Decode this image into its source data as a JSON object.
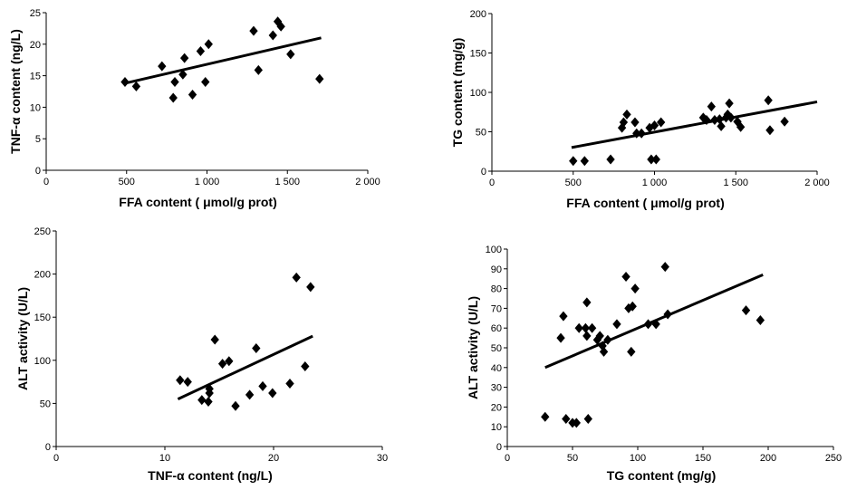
{
  "chart_data": [
    {
      "type": "scatter",
      "xlabel": "FFA content ( μmol/g prot)",
      "ylabel": "TNF-α content (ng/L)",
      "xlim": [
        0,
        2000
      ],
      "ylim": [
        0,
        25
      ],
      "xticks": [
        0,
        500,
        1000,
        1500,
        2000
      ],
      "xtick_labels": [
        "0",
        "500",
        "1 000",
        "1 500",
        "2 000"
      ],
      "yticks": [
        0,
        5,
        10,
        15,
        20,
        25
      ],
      "ytick_labels": [
        "0",
        "5",
        "10",
        "15",
        "20",
        "25"
      ],
      "points": [
        [
          490,
          14.0
        ],
        [
          560,
          13.3
        ],
        [
          720,
          16.5
        ],
        [
          790,
          11.5
        ],
        [
          800,
          14.0
        ],
        [
          850,
          15.2
        ],
        [
          860,
          17.8
        ],
        [
          910,
          12.0
        ],
        [
          960,
          18.9
        ],
        [
          990,
          14.0
        ],
        [
          1010,
          20.0
        ],
        [
          1290,
          22.1
        ],
        [
          1320,
          15.9
        ],
        [
          1410,
          21.4
        ],
        [
          1440,
          23.6
        ],
        [
          1460,
          22.8
        ],
        [
          1520,
          18.4
        ],
        [
          1700,
          14.5
        ]
      ],
      "trendline": [
        [
          490,
          13.8
        ],
        [
          1710,
          21.0
        ]
      ],
      "grid": false
    },
    {
      "type": "scatter",
      "xlabel": "FFA content ( μmol/g prot)",
      "ylabel": "TG content (mg/g)",
      "xlim": [
        0,
        2000
      ],
      "ylim": [
        0,
        200
      ],
      "xticks": [
        0,
        500,
        1000,
        1500,
        2000
      ],
      "xtick_labels": [
        "0",
        "500",
        "1 000",
        "1 500",
        "2 000"
      ],
      "yticks": [
        0,
        50,
        100,
        150,
        200
      ],
      "ytick_labels": [
        "0",
        "50",
        "100",
        "150",
        "200"
      ],
      "points": [
        [
          500,
          13
        ],
        [
          570,
          13
        ],
        [
          730,
          15
        ],
        [
          800,
          55
        ],
        [
          810,
          62
        ],
        [
          830,
          72
        ],
        [
          880,
          62
        ],
        [
          890,
          48
        ],
        [
          920,
          48
        ],
        [
          970,
          55
        ],
        [
          980,
          15
        ],
        [
          1000,
          58
        ],
        [
          1010,
          15
        ],
        [
          1040,
          62
        ],
        [
          1300,
          68
        ],
        [
          1320,
          65
        ],
        [
          1350,
          82
        ],
        [
          1370,
          65
        ],
        [
          1400,
          66
        ],
        [
          1410,
          57
        ],
        [
          1440,
          68
        ],
        [
          1450,
          72
        ],
        [
          1460,
          86
        ],
        [
          1470,
          68
        ],
        [
          1510,
          63
        ],
        [
          1530,
          56
        ],
        [
          1700,
          90
        ],
        [
          1710,
          52
        ],
        [
          1800,
          63
        ]
      ],
      "trendline": [
        [
          490,
          30
        ],
        [
          2000,
          88
        ]
      ],
      "grid": false
    },
    {
      "type": "scatter",
      "xlabel": "TNF-α content (ng/L)",
      "ylabel": "ALT activity (U/L)",
      "xlim": [
        0,
        30
      ],
      "ylim": [
        0,
        250
      ],
      "xticks": [
        0,
        10,
        20,
        30
      ],
      "xtick_labels": [
        "0",
        "10",
        "20",
        "30"
      ],
      "yticks": [
        0,
        50,
        100,
        150,
        200,
        250
      ],
      "ytick_labels": [
        "0",
        "50",
        "100",
        "150",
        "200",
        "250"
      ],
      "points": [
        [
          11.4,
          77
        ],
        [
          12.1,
          75
        ],
        [
          13.4,
          54
        ],
        [
          14.0,
          52
        ],
        [
          14.1,
          62
        ],
        [
          14.1,
          67
        ],
        [
          14.6,
          124
        ],
        [
          15.3,
          96
        ],
        [
          15.9,
          99
        ],
        [
          16.5,
          47
        ],
        [
          17.8,
          60
        ],
        [
          18.4,
          114
        ],
        [
          19.0,
          70
        ],
        [
          19.9,
          62
        ],
        [
          21.5,
          73
        ],
        [
          22.1,
          196
        ],
        [
          22.9,
          93
        ],
        [
          23.4,
          185
        ]
      ],
      "trendline": [
        [
          11.2,
          55
        ],
        [
          23.6,
          128
        ]
      ],
      "grid": false
    },
    {
      "type": "scatter",
      "xlabel": "TG content (mg/g)",
      "ylabel": "ALT activity (U/L)",
      "xlim": [
        0,
        250
      ],
      "ylim": [
        0,
        100
      ],
      "xticks": [
        0,
        50,
        100,
        150,
        200,
        250
      ],
      "xtick_labels": [
        "0",
        "50",
        "100",
        "150",
        "200",
        "250"
      ],
      "yticks": [
        0,
        10,
        20,
        30,
        40,
        50,
        60,
        70,
        80,
        90,
        100
      ],
      "ytick_labels": [
        "0",
        "10",
        "20",
        "30",
        "40",
        "50",
        "60",
        "70",
        "80",
        "90",
        "100"
      ],
      "points": [
        [
          29,
          15
        ],
        [
          41,
          55
        ],
        [
          43,
          66
        ],
        [
          45,
          14
        ],
        [
          50,
          12
        ],
        [
          53,
          12
        ],
        [
          55,
          60
        ],
        [
          60,
          60
        ],
        [
          61,
          56
        ],
        [
          61,
          73
        ],
        [
          62,
          14
        ],
        [
          65,
          60
        ],
        [
          69,
          54
        ],
        [
          71,
          56
        ],
        [
          73,
          51
        ],
        [
          74,
          48
        ],
        [
          77,
          54
        ],
        [
          84,
          62
        ],
        [
          91,
          86
        ],
        [
          93,
          70
        ],
        [
          95,
          48
        ],
        [
          96,
          71
        ],
        [
          98,
          80
        ],
        [
          108,
          62
        ],
        [
          114,
          62
        ],
        [
          121,
          91
        ],
        [
          123,
          67
        ],
        [
          183,
          69
        ],
        [
          194,
          64
        ]
      ],
      "trendline": [
        [
          29,
          40
        ],
        [
          196,
          87
        ]
      ],
      "grid": false
    }
  ]
}
